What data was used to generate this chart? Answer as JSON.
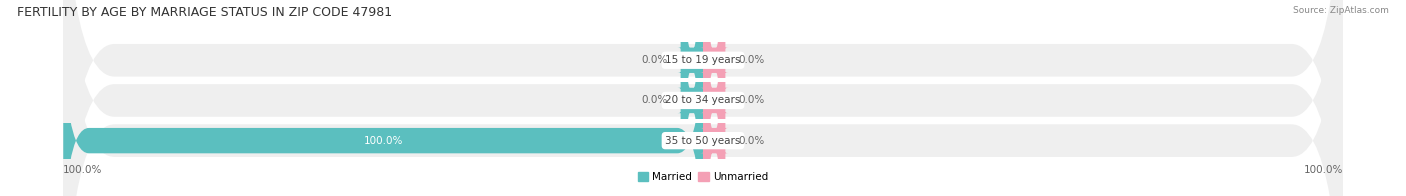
{
  "title": "FERTILITY BY AGE BY MARRIAGE STATUS IN ZIP CODE 47981",
  "source": "Source: ZipAtlas.com",
  "categories": [
    "15 to 19 years",
    "20 to 34 years",
    "35 to 50 years"
  ],
  "married_values": [
    0.0,
    0.0,
    100.0
  ],
  "unmarried_values": [
    0.0,
    0.0,
    0.0
  ],
  "married_color": "#5bbfbf",
  "unmarried_color": "#f4a0b5",
  "title_fontsize": 9,
  "source_fontsize": 6.5,
  "label_fontsize": 7.5,
  "axis_label_left": "100.0%",
  "axis_label_right": "100.0%",
  "bg_color": "#ffffff",
  "row_bg_color": "#efefef",
  "center_label_color": "#444444",
  "value_color_inside": "#ffffff",
  "value_color_outside": "#666666",
  "stub_size": 3.5,
  "xlim": 100.0
}
